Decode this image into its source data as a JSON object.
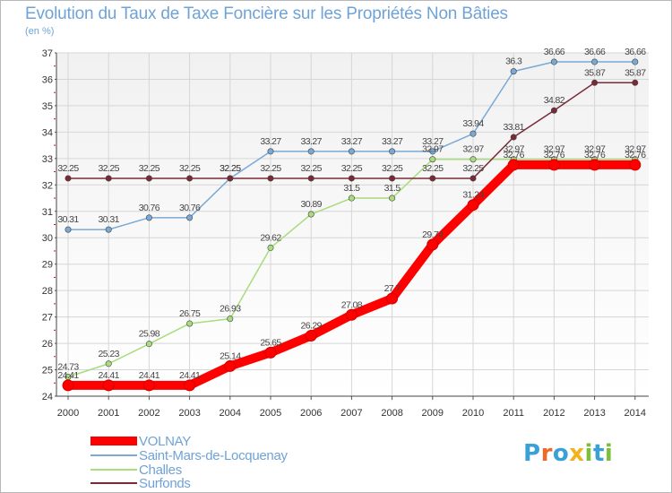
{
  "title": "Evolution du Taux de Taxe Foncière sur les Propriétés Non Bâties",
  "unit_label": "(en %)",
  "logo": {
    "text": "Proxiti",
    "letters": [
      {
        "ch": "P",
        "color": "#3aa1d6"
      },
      {
        "ch": "r",
        "color": "#e96a2a"
      },
      {
        "ch": "o",
        "color": "#3aa1d6"
      },
      {
        "ch": "x",
        "color": "#f2b21c"
      },
      {
        "ch": "i",
        "color": "#7cbf3c"
      },
      {
        "ch": "t",
        "color": "#3aa1d6"
      },
      {
        "ch": "i",
        "color": "#7cbf3c"
      }
    ]
  },
  "chart_data": {
    "type": "line",
    "title": "Evolution du Taux de Taxe Foncière sur les Propriétés Non Bâties",
    "ylabel": "(en %)",
    "xlabel": "",
    "categories": [
      "2000",
      "2001",
      "2002",
      "2003",
      "2004",
      "2005",
      "2006",
      "2007",
      "2008",
      "2009",
      "2010",
      "2011",
      "2012",
      "2013",
      "2014"
    ],
    "ylim": [
      24,
      37
    ],
    "yticks": [
      24,
      25,
      26,
      27,
      28,
      29,
      30,
      31,
      32,
      33,
      34,
      35,
      36,
      37
    ],
    "grid": true,
    "legend_position": "bottom-left",
    "series": [
      {
        "name": "VOLNAY",
        "color": "#ff0000",
        "line_width": 10,
        "labels": [
          "24.41",
          "24.41",
          "24.41",
          "24.41",
          "25.14",
          "25.65",
          "26.29",
          "27.08",
          "27.7",
          "29.74",
          "31.24",
          "32.76",
          "32.76",
          "32.76",
          "32.76"
        ],
        "values": [
          24.41,
          24.41,
          24.41,
          24.41,
          25.14,
          25.65,
          26.29,
          27.08,
          27.7,
          29.74,
          31.24,
          32.76,
          32.76,
          32.76,
          32.76
        ]
      },
      {
        "name": "Saint-Mars-de-Locquenay",
        "color": "#7aa9d6",
        "line_width": 1.5,
        "labels": [
          "30.31",
          "30.31",
          "30.76",
          "30.76",
          "32.25",
          "33.27",
          "33.27",
          "33.27",
          "33.27",
          "33.27",
          "33.94",
          "36.3",
          "36.66",
          "36.66",
          "36.66"
        ],
        "values": [
          30.31,
          30.31,
          30.76,
          30.76,
          32.25,
          33.27,
          33.27,
          33.27,
          33.27,
          33.27,
          33.94,
          36.3,
          36.66,
          36.66,
          36.66
        ]
      },
      {
        "name": "Challes",
        "color": "#a8dc7c",
        "line_width": 1.5,
        "labels": [
          "24.73",
          "25.23",
          "25.98",
          "26.75",
          "26.93",
          "29.62",
          "30.89",
          "31.5",
          "31.5",
          "32.97",
          "32.97",
          "32.97",
          "32.97",
          "32.97",
          "32.97"
        ],
        "values": [
          24.73,
          25.23,
          25.98,
          26.75,
          26.93,
          29.62,
          30.89,
          31.5,
          31.5,
          32.97,
          32.97,
          32.97,
          32.97,
          32.97,
          32.97
        ]
      },
      {
        "name": "Surfonds",
        "color": "#7a2a36",
        "line_width": 1.5,
        "labels": [
          "32.25",
          "32.25",
          "32.25",
          "32.25",
          "32.25",
          "32.25",
          "32.25",
          "32.25",
          "32.25",
          "32.25",
          "32.25",
          "33.81",
          "34.82",
          "35.87",
          "35.87"
        ],
        "values": [
          32.25,
          32.25,
          32.25,
          32.25,
          32.25,
          32.25,
          32.25,
          32.25,
          32.25,
          32.25,
          32.25,
          33.81,
          34.82,
          35.87,
          35.87
        ]
      }
    ]
  }
}
